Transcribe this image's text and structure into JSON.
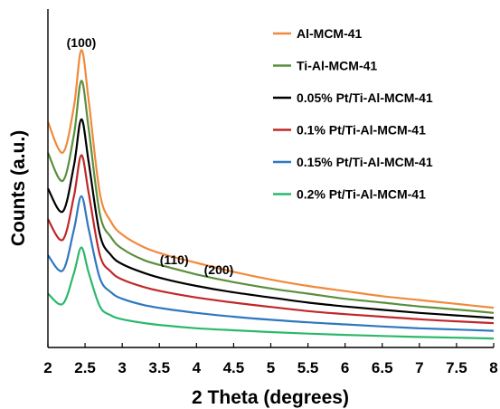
{
  "chart_data": {
    "type": "line",
    "xlabel": "2 Theta (degrees)",
    "ylabel": "Counts (a.u.)",
    "xlim": [
      2,
      8
    ],
    "xticks": [
      "2",
      "2.5",
      "3",
      "3.5",
      "4",
      "4.5",
      "5",
      "5.5",
      "6",
      "6.5",
      "7",
      "7.5",
      "8"
    ],
    "y_ticks_shown": false,
    "grid": false,
    "legend_position": "top-right",
    "annotations": [
      {
        "label": "(100)",
        "x": 2.45
      },
      {
        "label": "(110)",
        "x": 3.7
      },
      {
        "label": "(200)",
        "x": 4.3
      }
    ],
    "x": [
      2.0,
      2.2,
      2.35,
      2.45,
      2.55,
      2.7,
      2.85,
      3.0,
      3.3,
      3.6,
      4.0,
      4.5,
      5.0,
      5.5,
      6.0,
      6.5,
      7.0,
      7.5,
      8.0
    ],
    "series": [
      {
        "name": "Al-MCM-41",
        "color": "#f08a3c",
        "values": [
          8.8,
          7.6,
          9.4,
          11.6,
          9.6,
          6.0,
          4.9,
          4.4,
          3.9,
          3.6,
          3.3,
          2.95,
          2.65,
          2.4,
          2.2,
          2.0,
          1.85,
          1.7,
          1.55
        ]
      },
      {
        "name": "Ti-Al-MCM-41",
        "color": "#5a8f3c",
        "values": [
          7.6,
          6.5,
          8.3,
          10.4,
          8.5,
          5.2,
          4.3,
          3.85,
          3.4,
          3.15,
          2.85,
          2.55,
          2.3,
          2.1,
          1.9,
          1.75,
          1.6,
          1.48,
          1.35
        ]
      },
      {
        "name": "0.05% Pt/Ti-Al-MCM-41",
        "color": "#000000",
        "values": [
          6.2,
          5.3,
          7.1,
          8.9,
          7.2,
          4.4,
          3.6,
          3.25,
          2.9,
          2.65,
          2.4,
          2.15,
          1.95,
          1.75,
          1.6,
          1.47,
          1.35,
          1.25,
          1.15
        ]
      },
      {
        "name": "0.1% Pt/Ti-Al-MCM-41",
        "color": "#c0282a",
        "values": [
          5.0,
          4.2,
          5.9,
          7.5,
          6.0,
          3.6,
          2.95,
          2.65,
          2.35,
          2.15,
          1.95,
          1.75,
          1.58,
          1.42,
          1.3,
          1.2,
          1.1,
          1.02,
          0.95
        ]
      },
      {
        "name": "0.15% Pt/Ti-Al-MCM-41",
        "color": "#2e78c0",
        "values": [
          3.6,
          3.0,
          4.6,
          5.9,
          4.6,
          2.7,
          2.15,
          1.9,
          1.65,
          1.5,
          1.35,
          1.2,
          1.08,
          0.98,
          0.9,
          0.82,
          0.75,
          0.7,
          0.65
        ]
      },
      {
        "name": "0.2% Pt/Ti-Al-MCM-41",
        "color": "#2cb86b",
        "values": [
          2.1,
          1.7,
          2.9,
          3.9,
          2.9,
          1.6,
          1.25,
          1.1,
          0.95,
          0.85,
          0.75,
          0.67,
          0.6,
          0.54,
          0.49,
          0.45,
          0.41,
          0.38,
          0.35
        ]
      }
    ]
  }
}
